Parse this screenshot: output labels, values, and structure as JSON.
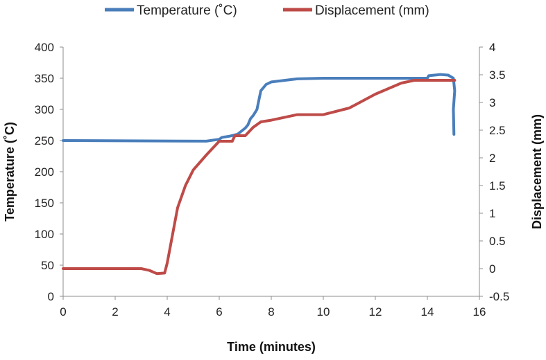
{
  "chart_data": {
    "type": "line",
    "xlabel": "Time (minutes)",
    "ylabel": "Temperature (˚C)",
    "y2label": "Displacement (mm)",
    "xlim": [
      0,
      16
    ],
    "ylim": [
      0,
      400
    ],
    "y2lim": [
      -0.5,
      4
    ],
    "x_ticks": [
      "0",
      "2",
      "4",
      "6",
      "8",
      "10",
      "12",
      "14",
      "16"
    ],
    "y_ticks": [
      "0",
      "50",
      "100",
      "150",
      "200",
      "250",
      "300",
      "350",
      "400"
    ],
    "y2_ticks": [
      "-0.5",
      "0",
      "0.5",
      "1",
      "1.5",
      "2",
      "2.5",
      "3",
      "3.5",
      "4"
    ],
    "legend_position": "top",
    "grid": false,
    "series": [
      {
        "name": "Temperature (˚C)",
        "axis": "left",
        "color": "#4a7ebb",
        "points": [
          [
            0,
            250
          ],
          [
            5.5,
            249
          ],
          [
            6,
            252
          ],
          [
            6.1,
            255
          ],
          [
            6.4,
            257
          ],
          [
            6.7,
            260
          ],
          [
            7.0,
            270
          ],
          [
            7.1,
            275
          ],
          [
            7.2,
            285
          ],
          [
            7.3,
            290
          ],
          [
            7.35,
            293
          ],
          [
            7.45,
            300
          ],
          [
            7.55,
            320
          ],
          [
            7.6,
            330
          ],
          [
            7.7,
            335
          ],
          [
            7.8,
            340
          ],
          [
            8,
            344
          ],
          [
            9,
            349
          ],
          [
            10,
            350
          ],
          [
            12,
            350
          ],
          [
            14,
            350
          ],
          [
            14.05,
            354
          ],
          [
            14.5,
            356
          ],
          [
            14.8,
            355
          ],
          [
            15.0,
            350
          ],
          [
            15.05,
            330
          ],
          [
            15.0,
            300
          ],
          [
            15.02,
            260
          ]
        ]
      },
      {
        "name": "Displacement (mm)",
        "axis": "right",
        "color": "#be4b48",
        "points": [
          [
            0,
            0
          ],
          [
            3,
            0
          ],
          [
            3.3,
            -0.03
          ],
          [
            3.6,
            -0.09
          ],
          [
            3.9,
            -0.08
          ],
          [
            4.0,
            0.1
          ],
          [
            4.2,
            0.6
          ],
          [
            4.4,
            1.1
          ],
          [
            4.7,
            1.5
          ],
          [
            5.0,
            1.78
          ],
          [
            5.5,
            2.05
          ],
          [
            6.0,
            2.3
          ],
          [
            6.5,
            2.3
          ],
          [
            6.6,
            2.4
          ],
          [
            7.0,
            2.4
          ],
          [
            7.1,
            2.45
          ],
          [
            7.3,
            2.55
          ],
          [
            7.6,
            2.65
          ],
          [
            8,
            2.68
          ],
          [
            9,
            2.78
          ],
          [
            10,
            2.78
          ],
          [
            11,
            2.9
          ],
          [
            12,
            3.15
          ],
          [
            13,
            3.35
          ],
          [
            13.5,
            3.4
          ],
          [
            14,
            3.4
          ],
          [
            15.05,
            3.4
          ]
        ]
      }
    ]
  }
}
